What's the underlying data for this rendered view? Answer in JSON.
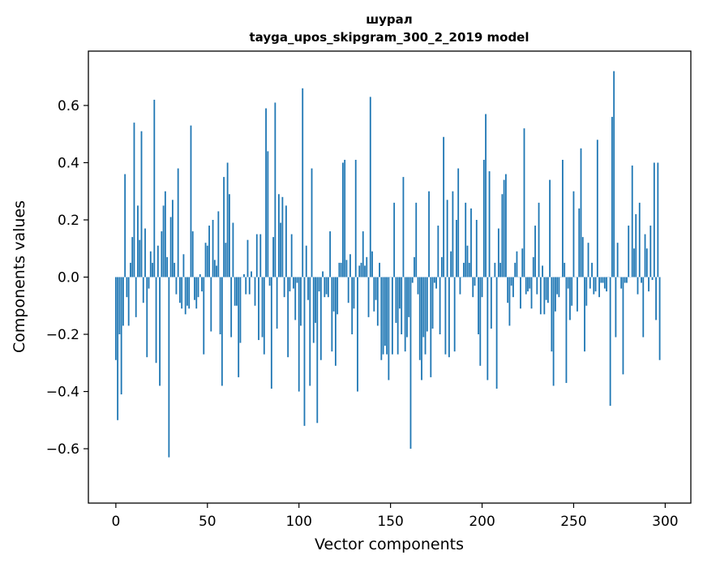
{
  "chart_data": {
    "type": "bar",
    "title": "шурал",
    "subtitle": "tayga_upos_skipgram_300_2_2019 model",
    "xlabel": "Vector components",
    "ylabel": "Components values",
    "xlim": [
      -15,
      314
    ],
    "ylim": [
      -0.79,
      0.79
    ],
    "xticks": [
      0,
      50,
      100,
      150,
      200,
      250,
      300
    ],
    "yticks": [
      -0.6,
      -0.4,
      -0.2,
      0.0,
      0.2,
      0.4,
      0.6
    ],
    "ytick_labels": [
      "−0.6",
      "−0.4",
      "−0.2",
      "0.0",
      "0.2",
      "0.4",
      "0.6"
    ],
    "xtick_labels": [
      "0",
      "50",
      "100",
      "150",
      "200",
      "250",
      "300"
    ],
    "bar_color": "#1f77b4",
    "values": [
      -0.29,
      -0.5,
      -0.2,
      -0.41,
      -0.17,
      0.36,
      -0.07,
      -0.17,
      0.05,
      0.14,
      0.54,
      -0.14,
      0.25,
      0.13,
      0.51,
      -0.09,
      0.17,
      -0.28,
      -0.04,
      0.09,
      0.05,
      0.62,
      -0.3,
      0.11,
      -0.38,
      0.16,
      0.25,
      0.3,
      0.07,
      -0.63,
      0.21,
      0.27,
      0.05,
      -0.06,
      0.38,
      -0.09,
      -0.11,
      0.08,
      -0.13,
      -0.1,
      -0.11,
      0.53,
      0.16,
      -0.08,
      -0.11,
      -0.07,
      0.01,
      -0.05,
      -0.27,
      0.12,
      0.11,
      0.18,
      -0.19,
      0.2,
      0.06,
      0.04,
      0.23,
      -0.2,
      -0.38,
      0.35,
      0.12,
      0.4,
      0.29,
      -0.21,
      0.19,
      -0.1,
      -0.1,
      -0.35,
      -0.23,
      0.0,
      0.01,
      -0.06,
      0.13,
      -0.06,
      0.02,
      0.0,
      -0.1,
      0.15,
      -0.22,
      0.15,
      -0.21,
      -0.27,
      0.59,
      0.44,
      -0.03,
      -0.39,
      0.14,
      0.61,
      -0.18,
      0.29,
      0.19,
      0.28,
      -0.07,
      0.25,
      -0.28,
      -0.05,
      0.15,
      -0.04,
      -0.15,
      -0.02,
      -0.4,
      -0.17,
      0.66,
      -0.52,
      0.11,
      -0.08,
      -0.38,
      0.38,
      -0.23,
      -0.16,
      -0.51,
      -0.05,
      -0.29,
      0.02,
      -0.07,
      -0.06,
      -0.07,
      0.16,
      -0.26,
      -0.12,
      -0.31,
      -0.13,
      0.05,
      0.05,
      0.4,
      0.41,
      0.06,
      -0.09,
      0.08,
      -0.2,
      -0.11,
      0.41,
      -0.4,
      0.04,
      0.05,
      0.16,
      0.04,
      0.07,
      -0.14,
      0.63,
      0.09,
      -0.12,
      -0.08,
      -0.17,
      0.05,
      -0.29,
      -0.27,
      -0.24,
      -0.27,
      -0.36,
      0.0,
      -0.27,
      0.26,
      -0.16,
      -0.27,
      -0.11,
      -0.2,
      0.35,
      -0.26,
      -0.21,
      -0.14,
      -0.6,
      -0.02,
      0.07,
      0.26,
      -0.06,
      -0.29,
      -0.36,
      -0.21,
      -0.27,
      -0.19,
      0.3,
      -0.35,
      -0.18,
      -0.02,
      -0.04,
      0.18,
      -0.2,
      0.07,
      0.49,
      -0.27,
      0.27,
      -0.28,
      0.09,
      0.3,
      -0.26,
      0.2,
      0.38,
      -0.06,
      0.0,
      0.05,
      0.26,
      0.11,
      0.05,
      0.24,
      -0.07,
      -0.03,
      0.2,
      -0.2,
      -0.31,
      -0.07,
      0.41,
      0.57,
      -0.36,
      0.37,
      -0.18,
      0.0,
      0.05,
      -0.39,
      0.17,
      0.05,
      0.29,
      0.34,
      0.36,
      -0.09,
      -0.17,
      -0.03,
      -0.07,
      0.05,
      0.09,
      0.0,
      -0.11,
      0.1,
      0.52,
      -0.06,
      -0.05,
      -0.04,
      -0.11,
      0.07,
      0.18,
      -0.06,
      0.26,
      -0.13,
      0.04,
      -0.13,
      -0.08,
      -0.09,
      0.34,
      -0.26,
      -0.38,
      -0.12,
      -0.06,
      -0.07,
      0.0,
      0.41,
      0.05,
      -0.37,
      -0.04,
      -0.15,
      -0.1,
      0.3,
      0.0,
      -0.12,
      0.24,
      0.45,
      0.14,
      -0.26,
      -0.1,
      0.12,
      -0.04,
      0.05,
      -0.06,
      -0.05,
      0.48,
      -0.07,
      -0.02,
      -0.02,
      -0.04,
      -0.05,
      0.0,
      -0.45,
      0.56,
      0.72,
      -0.21,
      0.12,
      0.0,
      -0.04,
      -0.34,
      -0.02,
      -0.02,
      0.18,
      0.0,
      0.39,
      0.1,
      0.22,
      -0.06,
      0.26,
      -0.02,
      -0.21,
      0.15,
      0.1,
      -0.05,
      0.18,
      -0.01,
      0.4,
      -0.15,
      0.4,
      -0.29
    ]
  }
}
